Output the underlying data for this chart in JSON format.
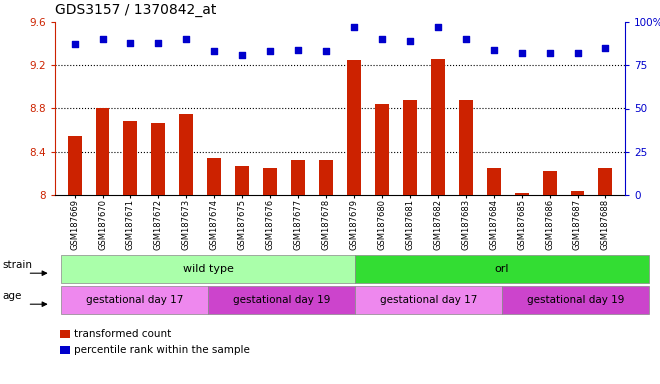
{
  "title": "GDS3157 / 1370842_at",
  "samples": [
    "GSM187669",
    "GSM187670",
    "GSM187671",
    "GSM187672",
    "GSM187673",
    "GSM187674",
    "GSM187675",
    "GSM187676",
    "GSM187677",
    "GSM187678",
    "GSM187679",
    "GSM187680",
    "GSM187681",
    "GSM187682",
    "GSM187683",
    "GSM187684",
    "GSM187685",
    "GSM187686",
    "GSM187687",
    "GSM187688"
  ],
  "transformed_count": [
    8.55,
    8.8,
    8.68,
    8.67,
    8.75,
    8.34,
    8.27,
    8.25,
    8.32,
    8.32,
    9.25,
    8.84,
    8.88,
    9.26,
    8.88,
    8.25,
    8.02,
    8.22,
    8.04,
    8.25
  ],
  "percentile_rank": [
    87,
    90,
    88,
    88,
    90,
    83,
    81,
    83,
    84,
    83,
    97,
    90,
    89,
    97,
    90,
    84,
    82,
    82,
    82,
    85
  ],
  "ylim_left": [
    8.0,
    9.6
  ],
  "ylim_right": [
    0,
    100
  ],
  "yticks_left": [
    8.0,
    8.4,
    8.8,
    9.2,
    9.6
  ],
  "yticks_right": [
    0,
    25,
    50,
    75,
    100
  ],
  "bar_color": "#cc2200",
  "dot_color": "#0000cc",
  "background_color": "#ffffff",
  "strain_groups": [
    {
      "label": "wild type",
      "start": 0,
      "end": 9,
      "color": "#aaffaa"
    },
    {
      "label": "orl",
      "start": 10,
      "end": 19,
      "color": "#33dd33"
    }
  ],
  "age_groups": [
    {
      "label": "gestational day 17",
      "start": 0,
      "end": 4,
      "color": "#ee88ee"
    },
    {
      "label": "gestational day 19",
      "start": 5,
      "end": 9,
      "color": "#cc44cc"
    },
    {
      "label": "gestational day 17",
      "start": 10,
      "end": 14,
      "color": "#ee88ee"
    },
    {
      "label": "gestational day 19",
      "start": 15,
      "end": 19,
      "color": "#cc44cc"
    }
  ],
  "legend_items": [
    {
      "label": "transformed count",
      "color": "#cc2200"
    },
    {
      "label": "percentile rank within the sample",
      "color": "#0000cc"
    }
  ],
  "grid_lines": [
    8.4,
    8.8,
    9.2
  ],
  "label_fontsize": 8,
  "tick_fontsize": 7.5,
  "bar_width": 0.5,
  "dot_size": 18,
  "title_fontsize": 10
}
